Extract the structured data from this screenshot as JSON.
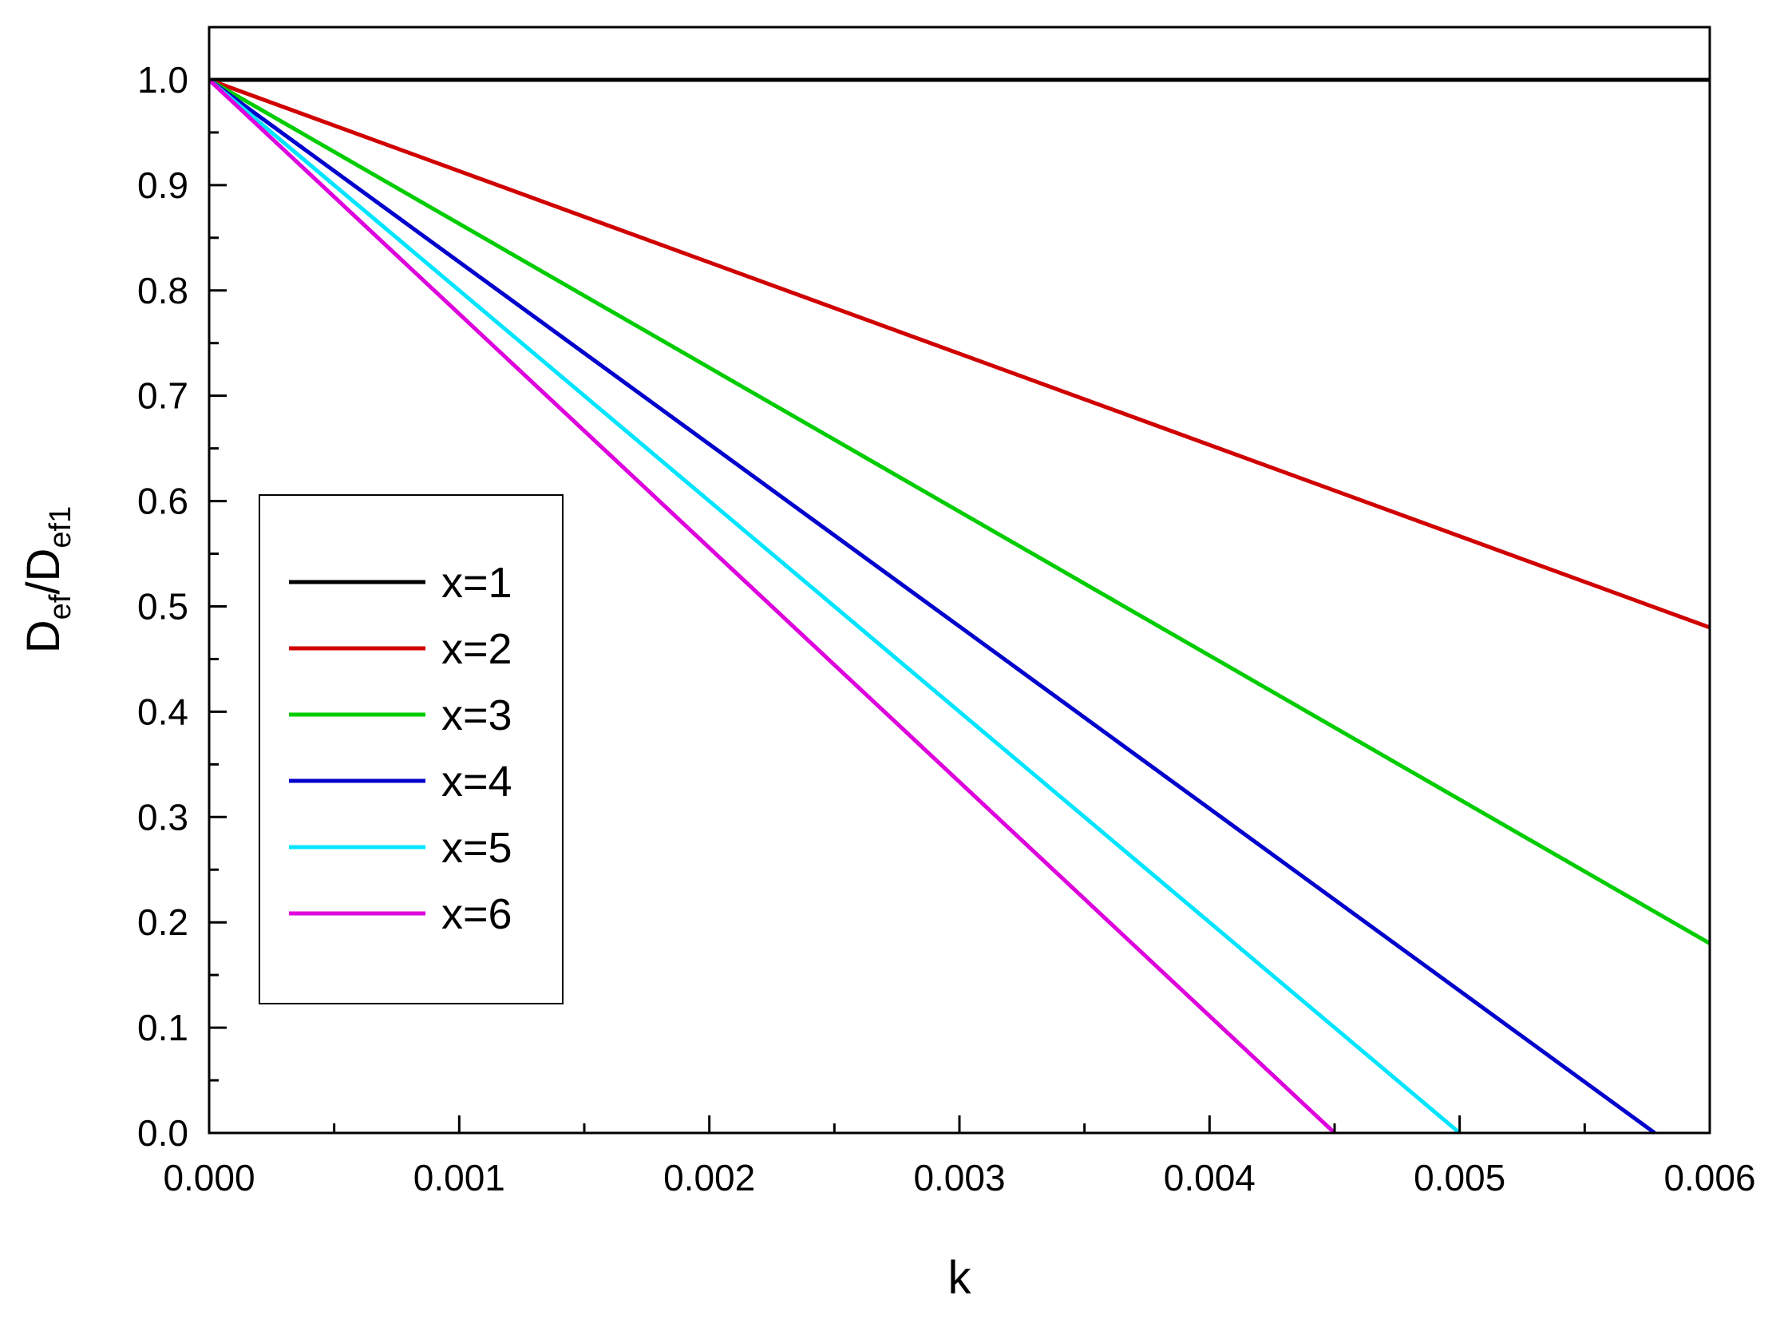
{
  "chart_data": {
    "type": "line",
    "title": "",
    "xlabel": "k",
    "ylabel": {
      "main_1": "D",
      "sub_1": "ef",
      "main_2": "/D",
      "sub_2": "ef1"
    },
    "xlim": [
      0,
      0.006
    ],
    "ylim": [
      0,
      1.05
    ],
    "xticks": [
      0.0,
      0.001,
      0.002,
      0.003,
      0.004,
      0.005,
      0.006
    ],
    "xtick_labels": [
      "0.000",
      "0.001",
      "0.002",
      "0.003",
      "0.004",
      "0.005",
      "0.006"
    ],
    "yticks": [
      0.0,
      0.1,
      0.2,
      0.3,
      0.4,
      0.5,
      0.6,
      0.7,
      0.8,
      0.9,
      1.0
    ],
    "ytick_labels": [
      "0.0",
      "0.1",
      "0.2",
      "0.3",
      "0.4",
      "0.5",
      "0.6",
      "0.7",
      "0.8",
      "0.9",
      "1.0"
    ],
    "grid": false,
    "legend_position": "center-left",
    "series": [
      {
        "name": "x=1",
        "color": "#000000",
        "x": [
          0,
          0.006
        ],
        "y": [
          1.0,
          1.0
        ]
      },
      {
        "name": "x=2",
        "color": "#d00000",
        "x": [
          0,
          0.006
        ],
        "y": [
          1.0,
          0.48
        ]
      },
      {
        "name": "x=3",
        "color": "#00cc00",
        "x": [
          0,
          0.006
        ],
        "y": [
          1.0,
          0.18
        ]
      },
      {
        "name": "x=4",
        "color": "#0000cc",
        "x": [
          0,
          0.00578
        ],
        "y": [
          1.0,
          0.0
        ]
      },
      {
        "name": "x=5",
        "color": "#00e5ff",
        "x": [
          0,
          0.005
        ],
        "y": [
          1.0,
          0.0
        ]
      },
      {
        "name": "x=6",
        "color": "#dd00dd",
        "x": [
          0,
          0.0045
        ],
        "y": [
          1.0,
          0.0
        ]
      }
    ]
  }
}
